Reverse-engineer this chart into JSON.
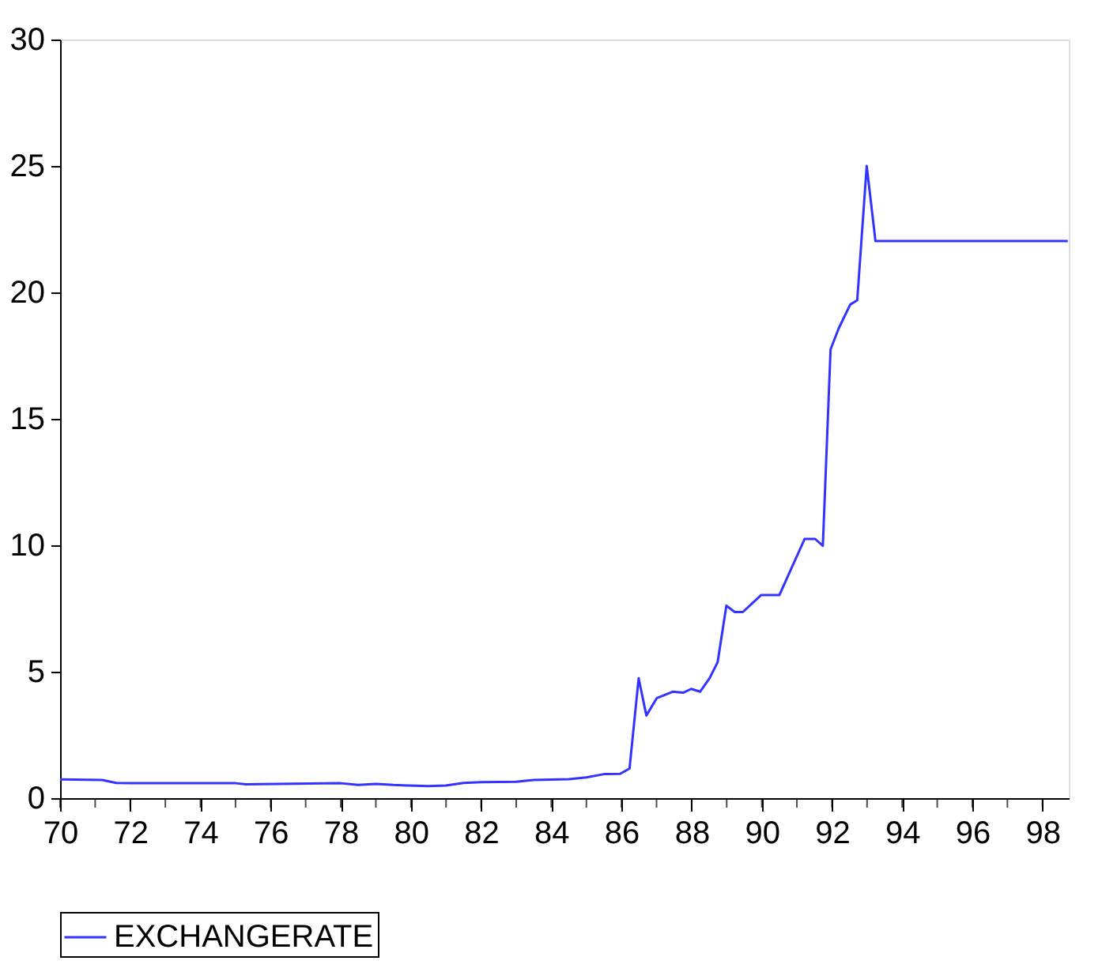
{
  "chart_data": {
    "type": "line",
    "legend": "bottom",
    "grid": false,
    "marker": "none",
    "line_style": "solid",
    "xlim": [
      70,
      98.75
    ],
    "xticks": [
      70,
      72,
      74,
      76,
      78,
      80,
      82,
      84,
      86,
      88,
      90,
      92,
      94,
      96,
      98
    ],
    "ylim": [
      0,
      30
    ],
    "yticks": [
      0,
      5,
      10,
      15,
      20,
      25,
      30
    ],
    "series": [
      {
        "name": "EXCHANGERATE",
        "color": "#3333ff",
        "x": [
          70,
          71.2,
          71.6,
          72,
          74,
          75,
          75.3,
          78,
          78.5,
          79,
          79.5,
          80.5,
          81,
          81.5,
          82,
          83,
          83.5,
          84.5,
          85,
          85.5,
          85.96,
          86.23,
          86.49,
          86.71,
          87.01,
          87.46,
          87.76,
          87.99,
          88.24,
          88.51,
          88.74,
          88.99,
          89.23,
          89.46,
          89.98,
          90.5,
          91.22,
          91.52,
          91.74,
          91.96,
          92.19,
          92.52,
          92.72,
          92.99,
          93.24,
          98.72
        ],
        "values": [
          0.74,
          0.72,
          0.6,
          0.59,
          0.59,
          0.59,
          0.55,
          0.59,
          0.52,
          0.56,
          0.52,
          0.48,
          0.5,
          0.6,
          0.63,
          0.65,
          0.72,
          0.75,
          0.82,
          0.95,
          0.96,
          1.17,
          4.74,
          3.27,
          3.96,
          4.21,
          4.17,
          4.32,
          4.21,
          4.74,
          5.37,
          7.61,
          7.36,
          7.36,
          8.03,
          8.03,
          10.25,
          10.25,
          9.98,
          17.74,
          18.57,
          19.52,
          19.69,
          25.0,
          22.03,
          22.03
        ]
      }
    ]
  }
}
